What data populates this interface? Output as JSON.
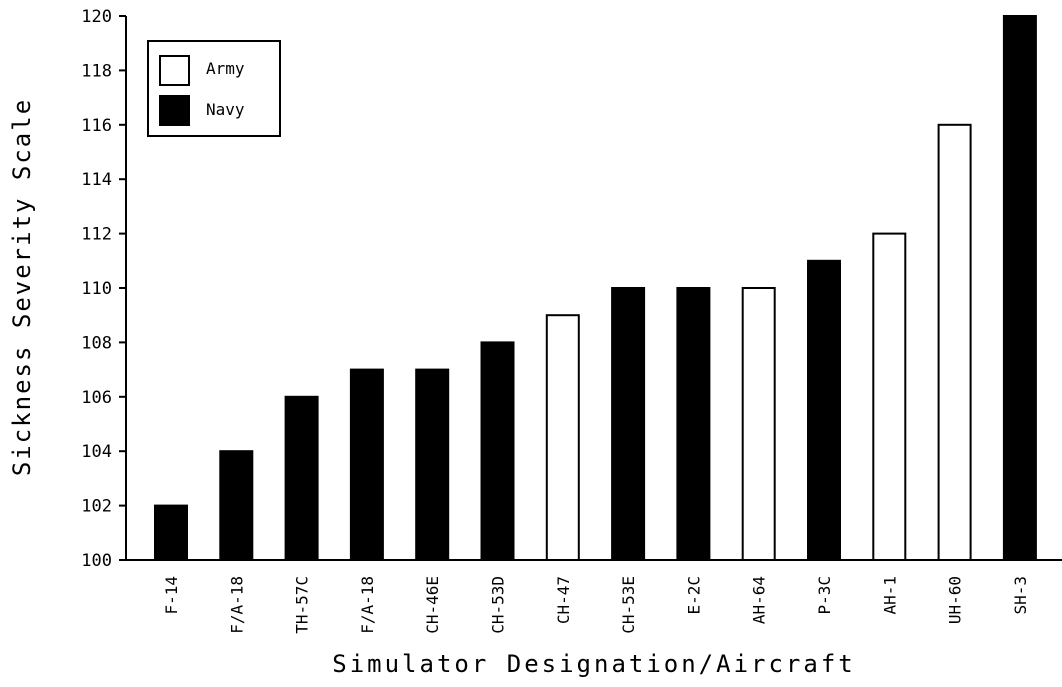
{
  "chart_data": {
    "type": "bar",
    "title": "",
    "xlabel": "Simulator Designation/Aircraft",
    "ylabel": "Sickness Severity Scale",
    "ylim": [
      100,
      120
    ],
    "yticks": [
      "100",
      "102",
      "104",
      "106",
      "108",
      "110",
      "112",
      "114",
      "116",
      "118",
      "120"
    ],
    "categories": [
      "F-14",
      "F/A-18",
      "TH-57C",
      "F/A-18",
      "CH-46E",
      "CH-53D",
      "CH-47",
      "CH-53E",
      "E-2C",
      "AH-64",
      "P-3C",
      "AH-1",
      "UH-60",
      "SH-3"
    ],
    "values": [
      102,
      104,
      106,
      107,
      107,
      108,
      109,
      110,
      110,
      110,
      111,
      112,
      116,
      120
    ],
    "groups": [
      "Navy",
      "Navy",
      "Navy",
      "Navy",
      "Navy",
      "Navy",
      "Army",
      "Navy",
      "Navy",
      "Army",
      "Navy",
      "Army",
      "Army",
      "Navy"
    ],
    "legend": {
      "position": "top-left",
      "items": [
        {
          "name": "Army",
          "fill": "#ffffff"
        },
        {
          "name": "Navy",
          "fill": "#000000"
        }
      ]
    },
    "grid": false
  }
}
